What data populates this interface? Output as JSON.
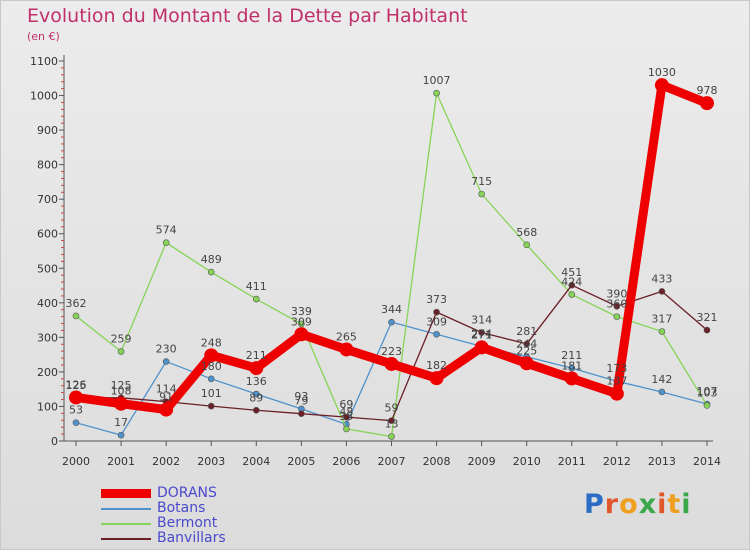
{
  "title": "Evolution du Montant de la Dette par Habitant",
  "subtitle": "(en €)",
  "brand": {
    "letters": [
      "P",
      "r",
      "o",
      "x",
      "i",
      "t",
      "i"
    ],
    "colors": [
      "#2b6cc4",
      "#e0562a",
      "#f0a020",
      "#3aa84a",
      "#e0562a",
      "#f0a020",
      "#3aa84a"
    ]
  },
  "chart_data": {
    "type": "line",
    "x": [
      "2000",
      "2001",
      "2002",
      "2003",
      "2004",
      "2005",
      "2006",
      "2007",
      "2008",
      "2009",
      "2010",
      "2011",
      "2012",
      "2013",
      "2014"
    ],
    "ylim": [
      0,
      1100
    ],
    "yticks": [
      0,
      100,
      200,
      300,
      400,
      500,
      600,
      700,
      800,
      900,
      1000,
      1100
    ],
    "grid": false,
    "legend_position": "bottom-left",
    "series": [
      {
        "name": "Botans",
        "color": "#4f92cc",
        "values": [
          53,
          17,
          230,
          180,
          136,
          93,
          48,
          344,
          309,
          274,
          244,
          211,
          173,
          142,
          107
        ]
      },
      {
        "name": "Bermont",
        "color": "#86d457",
        "values": [
          362,
          259,
          574,
          489,
          411,
          339,
          35,
          13,
          1007,
          715,
          568,
          424,
          360,
          317,
          103
        ]
      },
      {
        "name": "Banvillars",
        "color": "#6b1f26",
        "values": [
          125,
          125,
          114,
          101,
          89,
          79,
          69,
          59,
          373,
          314,
          281,
          451,
          390,
          433,
          321
        ]
      },
      {
        "name": "DORANS",
        "color": "#ee0000",
        "values": [
          126,
          108,
          91,
          248,
          211,
          309,
          265,
          223,
          182,
          271,
          225,
          181,
          137,
          1030,
          978
        ]
      }
    ],
    "legend_order": [
      "DORANS",
      "Botans",
      "Bermont",
      "Banvillars"
    ]
  }
}
